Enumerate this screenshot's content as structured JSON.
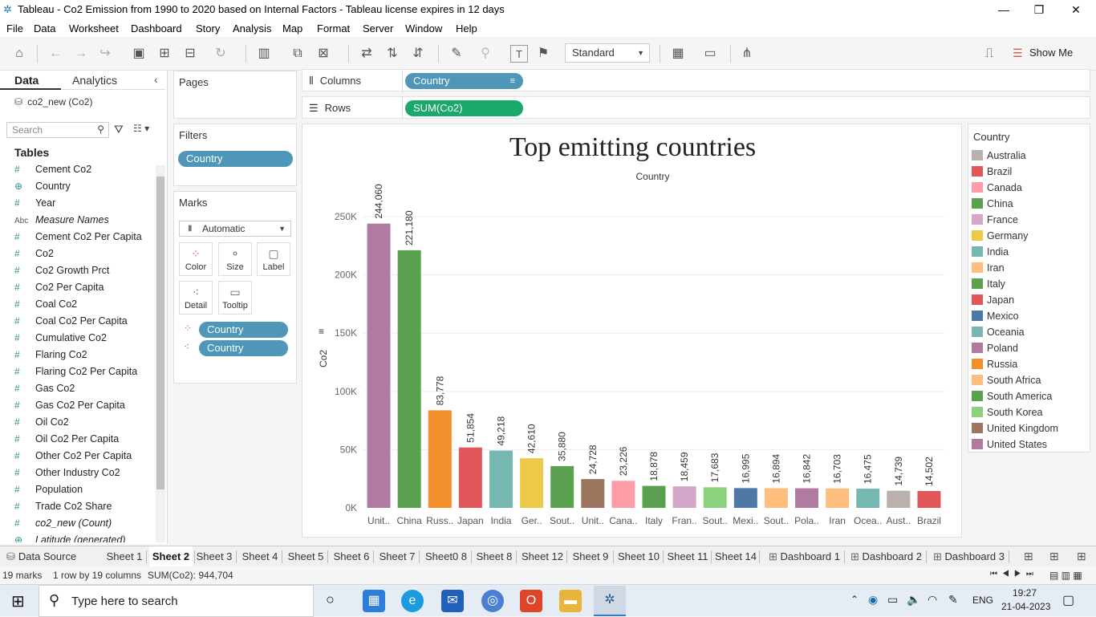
{
  "window": {
    "title": "Tableau - Co2 Emission from 1990 to 2020 based on Internal Factors - Tableau license expires in 12 days"
  },
  "menu": [
    "File",
    "Data",
    "Worksheet",
    "Dashboard",
    "Story",
    "Analysis",
    "Map",
    "Format",
    "Server",
    "Window",
    "Help"
  ],
  "toolbar": {
    "fit_select": "Standard",
    "show_me": "Show Me"
  },
  "datapane": {
    "tab_data": "Data",
    "tab_analytics": "Analytics",
    "datasource": "co2_new (Co2)",
    "search_placeholder": "Search",
    "tables_heading": "Tables",
    "fields": [
      {
        "label": "Cement Co2",
        "icon": "#"
      },
      {
        "label": "Country",
        "icon": "globe"
      },
      {
        "label": "Year",
        "icon": "#"
      },
      {
        "label": "Measure Names",
        "icon": "Abc",
        "italic": true
      },
      {
        "label": "Cement Co2 Per Capita",
        "icon": "#"
      },
      {
        "label": "Co2",
        "icon": "#"
      },
      {
        "label": "Co2 Growth Prct",
        "icon": "#"
      },
      {
        "label": "Co2 Per Capita",
        "icon": "#"
      },
      {
        "label": "Coal Co2",
        "icon": "#"
      },
      {
        "label": "Coal Co2 Per Capita",
        "icon": "#"
      },
      {
        "label": "Cumulative Co2",
        "icon": "#"
      },
      {
        "label": "Flaring Co2",
        "icon": "#"
      },
      {
        "label": "Flaring Co2 Per Capita",
        "icon": "#"
      },
      {
        "label": "Gas Co2",
        "icon": "#"
      },
      {
        "label": "Gas Co2 Per Capita",
        "icon": "#"
      },
      {
        "label": "Oil Co2",
        "icon": "#"
      },
      {
        "label": "Oil Co2 Per Capita",
        "icon": "#"
      },
      {
        "label": "Other Co2 Per Capita",
        "icon": "#"
      },
      {
        "label": "Other Industry Co2",
        "icon": "#"
      },
      {
        "label": "Population",
        "icon": "#"
      },
      {
        "label": "Trade Co2 Share",
        "icon": "#"
      },
      {
        "label": "co2_new (Count)",
        "icon": "#",
        "italic": true
      },
      {
        "label": "Latitude (generated)",
        "icon": "globe",
        "italic": true
      }
    ]
  },
  "pages": {
    "title": "Pages"
  },
  "filters": {
    "title": "Filters",
    "pill": "Country"
  },
  "marks": {
    "title": "Marks",
    "type": "Automatic",
    "buttons": [
      "Color",
      "Size",
      "Label",
      "Detail",
      "Tooltip"
    ],
    "pills": [
      "Country",
      "Country"
    ]
  },
  "shelves": {
    "columns_label": "Columns",
    "columns_pill": "Country",
    "rows_label": "Rows",
    "rows_pill": "SUM(Co2)"
  },
  "chart_data": {
    "type": "bar",
    "title": "Top emitting countries",
    "xlabel": "Country",
    "ylabel": "Co2",
    "ylim": [
      0,
      270000
    ],
    "yticks": [
      {
        "value": 0,
        "label": "0K"
      },
      {
        "value": 50000,
        "label": "50K"
      },
      {
        "value": 100000,
        "label": "100K"
      },
      {
        "value": 150000,
        "label": "150K"
      },
      {
        "value": 200000,
        "label": "200K"
      },
      {
        "value": 250000,
        "label": "250K"
      }
    ],
    "grid": true,
    "bars": [
      {
        "category": "Unit..",
        "value": 244060,
        "label": "244,060",
        "color": "#b07aa1"
      },
      {
        "category": "China",
        "value": 221180,
        "label": "221,180",
        "color": "#59a14f"
      },
      {
        "category": "Russ..",
        "value": 83778,
        "label": "83,778",
        "color": "#f28e2b"
      },
      {
        "category": "Japan",
        "value": 51854,
        "label": "51,854",
        "color": "#e15759"
      },
      {
        "category": "India",
        "value": 49218,
        "label": "49,218",
        "color": "#76b7b2"
      },
      {
        "category": "Ger..",
        "value": 42610,
        "label": "42,610",
        "color": "#edc948"
      },
      {
        "category": "Sout..",
        "value": 35880,
        "label": "35,880",
        "color": "#59a14f"
      },
      {
        "category": "Unit..",
        "value": 24728,
        "label": "24,728",
        "color": "#9c755f"
      },
      {
        "category": "Cana..",
        "value": 23226,
        "label": "23,226",
        "color": "#ff9da7"
      },
      {
        "category": "Italy",
        "value": 18878,
        "label": "18,878",
        "color": "#59a14f"
      },
      {
        "category": "Fran..",
        "value": 18459,
        "label": "18,459",
        "color": "#d4a6c8"
      },
      {
        "category": "Sout..",
        "value": 17683,
        "label": "17,683",
        "color": "#8cd17d"
      },
      {
        "category": "Mexi..",
        "value": 16995,
        "label": "16,995",
        "color": "#4e79a7"
      },
      {
        "category": "Sout..",
        "value": 16894,
        "label": "16,894",
        "color": "#ffbe7d"
      },
      {
        "category": "Pola..",
        "value": 16842,
        "label": "16,842",
        "color": "#b07aa1"
      },
      {
        "category": "Iran",
        "value": 16703,
        "label": "16,703",
        "color": "#ffbe7d"
      },
      {
        "category": "Ocea..",
        "value": 16475,
        "label": "16,475",
        "color": "#76b7b2"
      },
      {
        "category": "Aust..",
        "value": 14739,
        "label": "14,739",
        "color": "#bab0ac"
      },
      {
        "category": "Brazil",
        "value": 14502,
        "label": "14,502",
        "color": "#e15759"
      }
    ]
  },
  "legend": {
    "title": "Country",
    "items": [
      {
        "label": "Australia",
        "color": "#bab0ac"
      },
      {
        "label": "Brazil",
        "color": "#e15759"
      },
      {
        "label": "Canada",
        "color": "#ff9da7"
      },
      {
        "label": "China",
        "color": "#59a14f"
      },
      {
        "label": "France",
        "color": "#d4a6c8"
      },
      {
        "label": "Germany",
        "color": "#edc948"
      },
      {
        "label": "India",
        "color": "#76b7b2"
      },
      {
        "label": "Iran",
        "color": "#ffbe7d"
      },
      {
        "label": "Italy",
        "color": "#59a14f"
      },
      {
        "label": "Japan",
        "color": "#e15759"
      },
      {
        "label": "Mexico",
        "color": "#4e79a7"
      },
      {
        "label": "Oceania",
        "color": "#76b7b2"
      },
      {
        "label": "Poland",
        "color": "#b07aa1"
      },
      {
        "label": "Russia",
        "color": "#f28e2b"
      },
      {
        "label": "South Africa",
        "color": "#ffbe7d"
      },
      {
        "label": "South America",
        "color": "#59a14f"
      },
      {
        "label": "South Korea",
        "color": "#8cd17d"
      },
      {
        "label": "United Kingdom",
        "color": "#9c755f"
      },
      {
        "label": "United States",
        "color": "#b07aa1"
      }
    ]
  },
  "sheets": {
    "data_source": "Data Source",
    "tabs": [
      "Sheet 1",
      "Sheet 2",
      "Sheet 3",
      "Sheet 4",
      "Sheet 5",
      "Sheet 6",
      "Sheet 7",
      "Sheet0 8",
      "Sheet 8",
      "Sheet 12",
      "Sheet 9",
      "Sheet 10",
      "Sheet 11",
      "Sheet 14",
      "Dashboard 1",
      "Dashboard 2",
      "Dashboard 3"
    ],
    "active": "Sheet 2"
  },
  "status": {
    "marks": "19 marks",
    "dims": "1 row by 19 columns",
    "sum": "SUM(Co2): 944,704"
  },
  "taskbar": {
    "search_placeholder": "Type here to search",
    "language": "ENG",
    "time": "19:27",
    "date": "21-04-2023"
  }
}
